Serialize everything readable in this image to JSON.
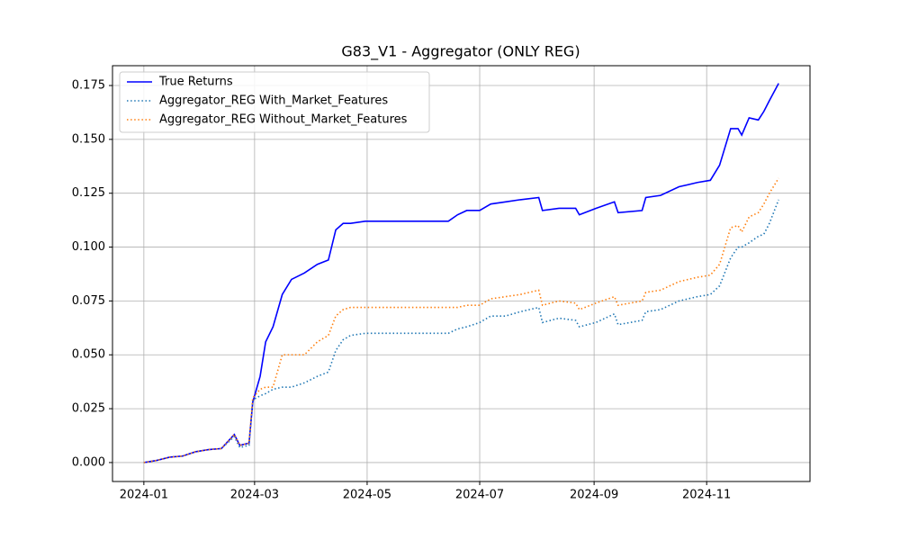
{
  "chart_data": {
    "type": "line",
    "title": "G83_V1 - Aggregator (ONLY REG)",
    "x": [
      0,
      7,
      14,
      21,
      28,
      35,
      42,
      49,
      52,
      57,
      59,
      63,
      66,
      70,
      75,
      80,
      87,
      94,
      100,
      104,
      108,
      112,
      120,
      130,
      150,
      165,
      170,
      175,
      182,
      188,
      196,
      204,
      214,
      216,
      225,
      234,
      236,
      245,
      255,
      257,
      270,
      272,
      280,
      290,
      300,
      307,
      312,
      318,
      322,
      324,
      328,
      333,
      336,
      339,
      344
    ],
    "xlim": [
      -17,
      361
    ],
    "xticks": [
      {
        "value": 0,
        "label": "2024-01"
      },
      {
        "value": 60,
        "label": "2024-03"
      },
      {
        "value": 121,
        "label": "2024-05"
      },
      {
        "value": 182,
        "label": "2024-07"
      },
      {
        "value": 244,
        "label": "2024-09"
      },
      {
        "value": 305,
        "label": "2024-11"
      }
    ],
    "ylim": [
      -0.0088,
      0.1842
    ],
    "yticks": [
      {
        "value": 0,
        "label": "0.000"
      },
      0.025,
      {
        "value": 0.05,
        "label": "0.050"
      },
      0.075,
      {
        "value": 0.1,
        "label": "0.100"
      },
      0.125,
      {
        "value": 0.15,
        "label": "0.150"
      },
      0.175
    ],
    "grid": true,
    "legend": "upper-left",
    "series": [
      {
        "name": "True Returns",
        "color": "#0000ff",
        "style": "solid",
        "values": [
          0,
          0.001,
          0.0025,
          0.003,
          0.005,
          0.006,
          0.0065,
          0.013,
          0.008,
          0.009,
          0.028,
          0.04,
          0.056,
          0.063,
          0.078,
          0.085,
          0.088,
          0.092,
          0.094,
          0.108,
          0.111,
          0.111,
          0.112,
          0.112,
          0.112,
          0.112,
          0.115,
          0.117,
          0.117,
          0.12,
          0.121,
          0.122,
          0.123,
          0.117,
          0.118,
          0.118,
          0.115,
          0.118,
          0.121,
          0.116,
          0.117,
          0.123,
          0.124,
          0.128,
          0.13,
          0.131,
          0.138,
          0.155,
          0.155,
          0.152,
          0.16,
          0.159,
          0.163,
          0.168,
          0.176
        ]
      },
      {
        "name": "Aggregator_REG With_Market_Features",
        "color": "#1f77b4",
        "style": "dotted",
        "values": [
          0,
          0.001,
          0.0025,
          0.003,
          0.005,
          0.006,
          0.0065,
          0.012,
          0.007,
          0.008,
          0.029,
          0.031,
          0.032,
          0.034,
          0.035,
          0.035,
          0.037,
          0.04,
          0.042,
          0.052,
          0.057,
          0.059,
          0.06,
          0.06,
          0.06,
          0.06,
          0.062,
          0.063,
          0.065,
          0.068,
          0.068,
          0.07,
          0.072,
          0.065,
          0.067,
          0.066,
          0.063,
          0.065,
          0.069,
          0.064,
          0.066,
          0.07,
          0.071,
          0.075,
          0.077,
          0.078,
          0.082,
          0.095,
          0.1,
          0.1,
          0.102,
          0.105,
          0.106,
          0.111,
          0.122
        ]
      },
      {
        "name": "Aggregator_REG Without_Market_Features",
        "color": "#ff7f0e",
        "style": "dotted",
        "values": [
          0,
          0.001,
          0.0025,
          0.003,
          0.005,
          0.006,
          0.0065,
          0.013,
          0.008,
          0.009,
          0.03,
          0.034,
          0.035,
          0.035,
          0.05,
          0.05,
          0.05,
          0.056,
          0.059,
          0.068,
          0.071,
          0.072,
          0.072,
          0.072,
          0.072,
          0.072,
          0.072,
          0.073,
          0.073,
          0.076,
          0.077,
          0.078,
          0.08,
          0.073,
          0.075,
          0.074,
          0.071,
          0.074,
          0.077,
          0.073,
          0.075,
          0.079,
          0.08,
          0.084,
          0.086,
          0.087,
          0.092,
          0.109,
          0.11,
          0.107,
          0.114,
          0.116,
          0.12,
          0.125,
          0.132
        ]
      }
    ]
  }
}
